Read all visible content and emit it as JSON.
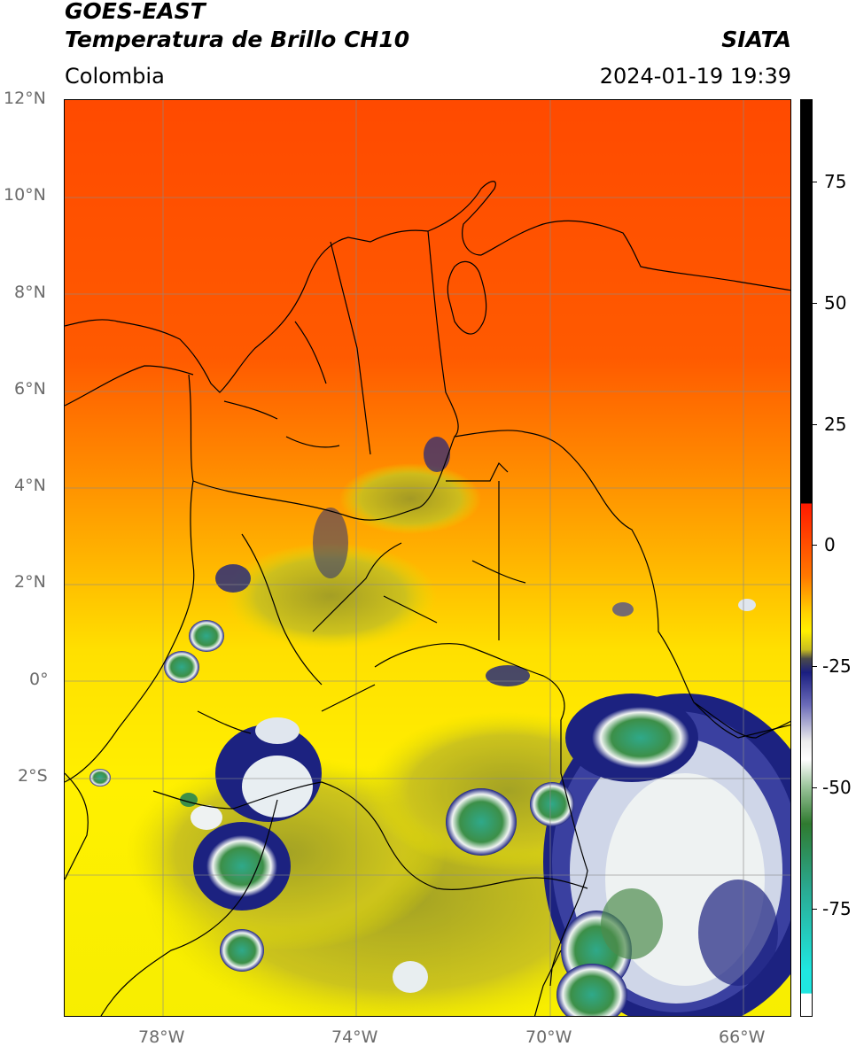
{
  "header": {
    "satellite": "GOES-EAST",
    "product": "Temperatura de Brillo CH10",
    "region": "Colombia",
    "agency": "SIATA",
    "datetime": "2024-01-19 19:39"
  },
  "map": {
    "lat_labels": [
      "12°N",
      "10°N",
      "8°N",
      "6°N",
      "4°N",
      "2°N",
      "0°",
      "2°S"
    ],
    "lon_labels": [
      "78°W",
      "74°W",
      "70°W",
      "66°W"
    ],
    "gridlines": true
  },
  "colorbar": {
    "ticks": [
      "75",
      "50",
      "25",
      "0",
      "-25",
      "-50",
      "-75"
    ],
    "colors": {
      "warm": "#ff3b00",
      "orange": "#ff8c00",
      "yellow": "#ffee00",
      "olive": "#8a8a20",
      "navy": "#161a7a",
      "white": "#f2f2f2",
      "green": "#3f8f3f",
      "cyan": "#22d8d0",
      "black": "#000000"
    }
  }
}
